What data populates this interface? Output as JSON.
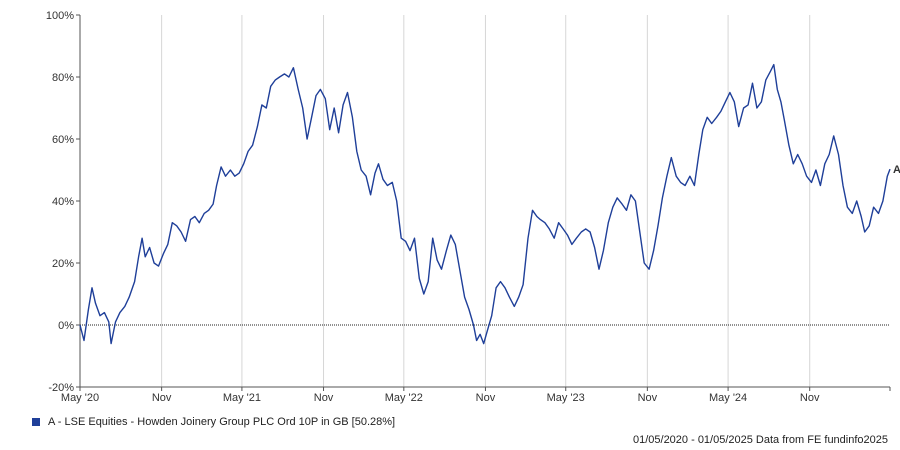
{
  "chart_data": {
    "type": "line",
    "y_unit": "%",
    "ylim": [
      -20,
      100
    ],
    "y_ticks": [
      -20,
      0,
      20,
      40,
      60,
      80,
      100
    ],
    "y_tick_labels": [
      "-20%",
      "0%",
      "20%",
      "40%",
      "60%",
      "80%",
      "100%"
    ],
    "x_range": [
      "2020-05-01",
      "2025-05-01"
    ],
    "x_ticks": [
      {
        "date": "2020-05-01",
        "label": "May '20"
      },
      {
        "date": "2020-11-01",
        "label": "Nov"
      },
      {
        "date": "2021-05-01",
        "label": "May '21"
      },
      {
        "date": "2021-11-01",
        "label": "Nov"
      },
      {
        "date": "2022-05-01",
        "label": "May '22"
      },
      {
        "date": "2022-11-01",
        "label": "Nov"
      },
      {
        "date": "2023-05-01",
        "label": "May '23"
      },
      {
        "date": "2023-11-01",
        "label": "Nov"
      },
      {
        "date": "2024-05-01",
        "label": "May '24"
      },
      {
        "date": "2024-11-01",
        "label": "Nov"
      }
    ],
    "grid": "vertical",
    "zero_line": "dotted",
    "series": [
      {
        "name": "A - LSE Equities - Howden Joinery Group PLC Ord 10P in GB [50.28%]",
        "end_label": "A",
        "color": "#1f3f99",
        "points": [
          [
            "2020-05-01",
            0
          ],
          [
            "2020-05-10",
            -5
          ],
          [
            "2020-05-20",
            5
          ],
          [
            "2020-05-28",
            12
          ],
          [
            "2020-06-05",
            7
          ],
          [
            "2020-06-15",
            3
          ],
          [
            "2020-06-25",
            4
          ],
          [
            "2020-07-05",
            1
          ],
          [
            "2020-07-10",
            -6
          ],
          [
            "2020-07-20",
            1
          ],
          [
            "2020-07-30",
            4
          ],
          [
            "2020-08-10",
            6
          ],
          [
            "2020-08-20",
            9
          ],
          [
            "2020-09-01",
            14
          ],
          [
            "2020-09-10",
            22
          ],
          [
            "2020-09-18",
            28
          ],
          [
            "2020-09-25",
            22
          ],
          [
            "2020-10-05",
            25
          ],
          [
            "2020-10-15",
            20
          ],
          [
            "2020-10-25",
            19
          ],
          [
            "2020-11-05",
            23
          ],
          [
            "2020-11-15",
            26
          ],
          [
            "2020-11-25",
            33
          ],
          [
            "2020-12-05",
            32
          ],
          [
            "2020-12-15",
            30
          ],
          [
            "2020-12-25",
            27
          ],
          [
            "2021-01-05",
            34
          ],
          [
            "2021-01-15",
            35
          ],
          [
            "2021-01-25",
            33
          ],
          [
            "2021-02-05",
            36
          ],
          [
            "2021-02-15",
            37
          ],
          [
            "2021-02-25",
            39
          ],
          [
            "2021-03-05",
            45
          ],
          [
            "2021-03-15",
            51
          ],
          [
            "2021-03-25",
            48
          ],
          [
            "2021-04-05",
            50
          ],
          [
            "2021-04-15",
            48
          ],
          [
            "2021-04-25",
            49
          ],
          [
            "2021-05-05",
            52
          ],
          [
            "2021-05-15",
            56
          ],
          [
            "2021-05-25",
            58
          ],
          [
            "2021-06-05",
            64
          ],
          [
            "2021-06-15",
            71
          ],
          [
            "2021-06-25",
            70
          ],
          [
            "2021-07-05",
            77
          ],
          [
            "2021-07-15",
            79
          ],
          [
            "2021-07-25",
            80
          ],
          [
            "2021-08-05",
            81
          ],
          [
            "2021-08-15",
            80
          ],
          [
            "2021-08-25",
            83
          ],
          [
            "2021-09-05",
            76
          ],
          [
            "2021-09-15",
            70
          ],
          [
            "2021-09-25",
            60
          ],
          [
            "2021-10-05",
            67
          ],
          [
            "2021-10-15",
            74
          ],
          [
            "2021-10-25",
            76
          ],
          [
            "2021-11-05",
            73
          ],
          [
            "2021-11-15",
            63
          ],
          [
            "2021-11-25",
            70
          ],
          [
            "2021-12-05",
            62
          ],
          [
            "2021-12-15",
            71
          ],
          [
            "2021-12-25",
            75
          ],
          [
            "2022-01-05",
            67
          ],
          [
            "2022-01-15",
            56
          ],
          [
            "2022-01-25",
            50
          ],
          [
            "2022-02-05",
            48
          ],
          [
            "2022-02-15",
            42
          ],
          [
            "2022-02-25",
            49
          ],
          [
            "2022-03-05",
            52
          ],
          [
            "2022-03-15",
            47
          ],
          [
            "2022-03-25",
            45
          ],
          [
            "2022-04-05",
            46
          ],
          [
            "2022-04-15",
            40
          ],
          [
            "2022-04-25",
            28
          ],
          [
            "2022-05-05",
            27
          ],
          [
            "2022-05-15",
            24
          ],
          [
            "2022-05-25",
            28
          ],
          [
            "2022-06-05",
            15
          ],
          [
            "2022-06-15",
            10
          ],
          [
            "2022-06-25",
            14
          ],
          [
            "2022-07-05",
            28
          ],
          [
            "2022-07-15",
            21
          ],
          [
            "2022-07-25",
            18
          ],
          [
            "2022-08-05",
            24
          ],
          [
            "2022-08-15",
            29
          ],
          [
            "2022-08-25",
            26
          ],
          [
            "2022-09-05",
            17
          ],
          [
            "2022-09-15",
            9
          ],
          [
            "2022-09-25",
            5
          ],
          [
            "2022-10-05",
            0
          ],
          [
            "2022-10-12",
            -5
          ],
          [
            "2022-10-20",
            -3
          ],
          [
            "2022-10-28",
            -6
          ],
          [
            "2022-11-05",
            -2
          ],
          [
            "2022-11-15",
            3
          ],
          [
            "2022-11-25",
            12
          ],
          [
            "2022-12-05",
            14
          ],
          [
            "2022-12-15",
            12
          ],
          [
            "2022-12-25",
            9
          ],
          [
            "2023-01-05",
            6
          ],
          [
            "2023-01-15",
            9
          ],
          [
            "2023-01-25",
            13
          ],
          [
            "2023-02-05",
            28
          ],
          [
            "2023-02-15",
            37
          ],
          [
            "2023-02-25",
            35
          ],
          [
            "2023-03-05",
            34
          ],
          [
            "2023-03-15",
            33
          ],
          [
            "2023-03-25",
            31
          ],
          [
            "2023-04-05",
            28
          ],
          [
            "2023-04-15",
            33
          ],
          [
            "2023-04-25",
            31
          ],
          [
            "2023-05-05",
            29
          ],
          [
            "2023-05-15",
            26
          ],
          [
            "2023-05-25",
            28
          ],
          [
            "2023-06-05",
            30
          ],
          [
            "2023-06-15",
            31
          ],
          [
            "2023-06-25",
            30
          ],
          [
            "2023-07-05",
            25
          ],
          [
            "2023-07-15",
            18
          ],
          [
            "2023-07-25",
            24
          ],
          [
            "2023-08-05",
            33
          ],
          [
            "2023-08-15",
            38
          ],
          [
            "2023-08-25",
            41
          ],
          [
            "2023-09-05",
            39
          ],
          [
            "2023-09-15",
            37
          ],
          [
            "2023-09-25",
            42
          ],
          [
            "2023-10-05",
            40
          ],
          [
            "2023-10-15",
            30
          ],
          [
            "2023-10-25",
            20
          ],
          [
            "2023-11-05",
            18
          ],
          [
            "2023-11-15",
            24
          ],
          [
            "2023-11-25",
            32
          ],
          [
            "2023-12-05",
            41
          ],
          [
            "2023-12-15",
            48
          ],
          [
            "2023-12-25",
            54
          ],
          [
            "2024-01-05",
            48
          ],
          [
            "2024-01-15",
            46
          ],
          [
            "2024-01-25",
            45
          ],
          [
            "2024-02-05",
            48
          ],
          [
            "2024-02-15",
            45
          ],
          [
            "2024-02-25",
            55
          ],
          [
            "2024-03-05",
            63
          ],
          [
            "2024-03-15",
            67
          ],
          [
            "2024-03-25",
            65
          ],
          [
            "2024-04-05",
            67
          ],
          [
            "2024-04-15",
            69
          ],
          [
            "2024-04-25",
            72
          ],
          [
            "2024-05-05",
            75
          ],
          [
            "2024-05-15",
            72
          ],
          [
            "2024-05-25",
            64
          ],
          [
            "2024-06-05",
            70
          ],
          [
            "2024-06-15",
            71
          ],
          [
            "2024-06-25",
            78
          ],
          [
            "2024-07-05",
            70
          ],
          [
            "2024-07-15",
            72
          ],
          [
            "2024-07-25",
            79
          ],
          [
            "2024-08-05",
            82
          ],
          [
            "2024-08-12",
            84
          ],
          [
            "2024-08-20",
            76
          ],
          [
            "2024-08-28",
            72
          ],
          [
            "2024-09-05",
            66
          ],
          [
            "2024-09-15",
            58
          ],
          [
            "2024-09-25",
            52
          ],
          [
            "2024-10-05",
            55
          ],
          [
            "2024-10-15",
            52
          ],
          [
            "2024-10-25",
            48
          ],
          [
            "2024-11-05",
            46
          ],
          [
            "2024-11-15",
            50
          ],
          [
            "2024-11-25",
            45
          ],
          [
            "2024-12-05",
            52
          ],
          [
            "2024-12-15",
            55
          ],
          [
            "2024-12-25",
            61
          ],
          [
            "2025-01-05",
            55
          ],
          [
            "2025-01-15",
            45
          ],
          [
            "2025-01-25",
            38
          ],
          [
            "2025-02-05",
            36
          ],
          [
            "2025-02-15",
            40
          ],
          [
            "2025-02-25",
            35
          ],
          [
            "2025-03-05",
            30
          ],
          [
            "2025-03-15",
            32
          ],
          [
            "2025-03-25",
            38
          ],
          [
            "2025-04-05",
            36
          ],
          [
            "2025-04-15",
            40
          ],
          [
            "2025-04-25",
            48
          ],
          [
            "2025-05-01",
            50.28
          ]
        ]
      }
    ]
  },
  "legend": {
    "label": "A - LSE Equities - Howden Joinery Group PLC Ord 10P in GB [50.28%]",
    "swatch_color": "#1f3f99"
  },
  "source_text": "01/05/2020 - 01/05/2025 Data from FE fundinfo2025"
}
